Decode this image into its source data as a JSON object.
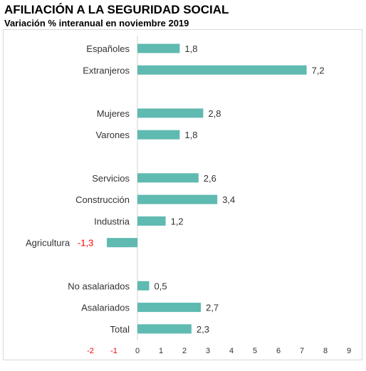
{
  "chart_data": {
    "type": "bar",
    "orientation": "horizontal",
    "title": "AFILIACIÓN A LA SEGURIDAD SOCIAL",
    "subtitle": "Variación % interanual en noviembre 2019",
    "xlim": [
      -2,
      9
    ],
    "xticks": [
      "-2",
      "-1",
      "0",
      "1",
      "2",
      "3",
      "4",
      "5",
      "6",
      "7",
      "8",
      "9"
    ],
    "grid": false,
    "legend": "none",
    "bar_color": "#5fbab1",
    "negative_label_color": "#ff0000",
    "label_color": "#333333",
    "groups": [
      {
        "categories": [
          "Españoles",
          "Extranjeros"
        ],
        "values": [
          1.8,
          7.2
        ],
        "labels": [
          "1,8",
          "7,2"
        ]
      },
      {
        "categories": [
          "Mujeres",
          "Varones"
        ],
        "values": [
          2.8,
          1.8
        ],
        "labels": [
          "2,8",
          "1,8"
        ]
      },
      {
        "categories": [
          "Servicios",
          "Construcción",
          "Industria",
          "Agricultura"
        ],
        "values": [
          2.6,
          3.4,
          1.2,
          -1.3
        ],
        "labels": [
          "2,6",
          "3,4",
          "1,2",
          "-1,3"
        ]
      },
      {
        "categories": [
          "No asalariados",
          "Asalariados",
          "Total"
        ],
        "values": [
          0.5,
          2.7,
          2.3
        ],
        "labels": [
          "0,5",
          "2,7",
          "2,3"
        ]
      }
    ]
  }
}
